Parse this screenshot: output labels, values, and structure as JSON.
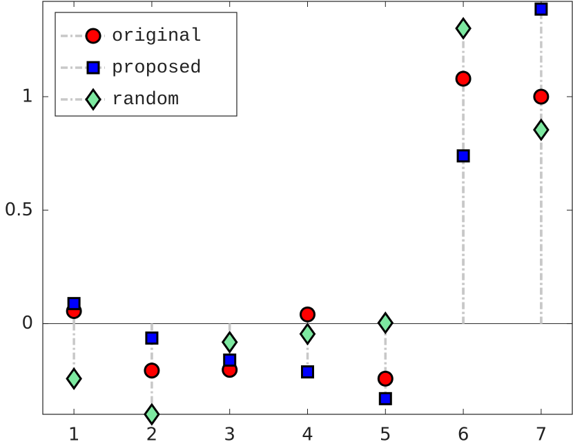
{
  "chart_data": {
    "type": "stem",
    "x": [
      1,
      2,
      3,
      4,
      5,
      6,
      7
    ],
    "xlim": [
      0.6,
      7.4
    ],
    "xticks": [
      1,
      2,
      3,
      4,
      5,
      6,
      7
    ],
    "ylim": [
      -0.4,
      1.42
    ],
    "yticks": [
      0,
      0.5,
      1
    ],
    "baseline": 0,
    "stem_color": "#c8c8c8",
    "legend": "upper left",
    "series": [
      {
        "name": "original",
        "color": "#ff0000",
        "marker": "circle",
        "values": [
          0.055,
          -0.207,
          -0.204,
          0.04,
          -0.243,
          1.079,
          1.0
        ]
      },
      {
        "name": "proposed",
        "color": "#0000ff",
        "marker": "square",
        "values": [
          0.088,
          -0.064,
          -0.161,
          -0.213,
          -0.331,
          0.739,
          1.386
        ]
      },
      {
        "name": "random",
        "color": "#7de8a0",
        "marker": "diamond",
        "values": [
          -0.243,
          -0.4,
          -0.082,
          -0.046,
          0.003,
          1.301,
          0.854
        ]
      }
    ]
  }
}
